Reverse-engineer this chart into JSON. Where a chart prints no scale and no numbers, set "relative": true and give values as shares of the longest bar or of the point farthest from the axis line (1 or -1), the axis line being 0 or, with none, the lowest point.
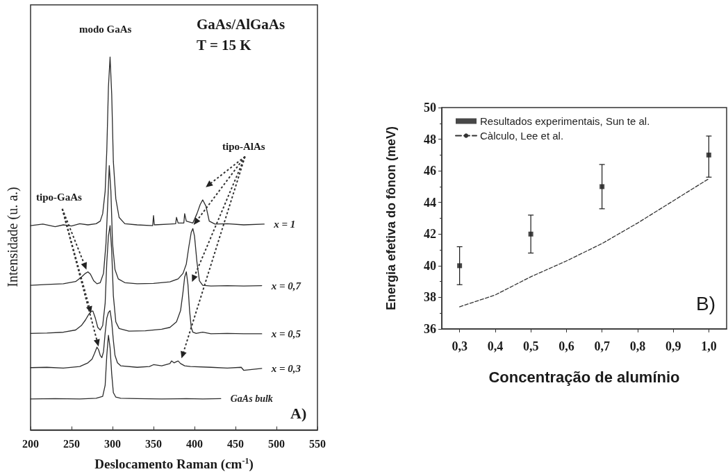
{
  "chart_data": [
    {
      "type": "line",
      "relative": true,
      "xlabel": "Deslocamento Raman (cm$^{-1}$)",
      "ylabel": "Intensidade (u. a.)",
      "xlim": [
        200,
        550
      ],
      "xticks": [
        200,
        250,
        300,
        350,
        400,
        450,
        500,
        550
      ],
      "tick_labels": "x",
      "legend": false,
      "grid": false,
      "marker": "none",
      "line_style": "solid",
      "annotations": [
        "modo GaAs",
        "GaAs/AlGaAs",
        "T = 15 K",
        "tipo-GaAs",
        "tipo-AlAs",
        "A)"
      ],
      "series": [
        {
          "name": "x = 1",
          "color": "#2b2b2b",
          "x": [
            200,
            215,
            230,
            240,
            250,
            260,
            270,
            280,
            285,
            288,
            291,
            293,
            295,
            297,
            299,
            301,
            304,
            308,
            315,
            330,
            349,
            350,
            351,
            370,
            377,
            378,
            380,
            387,
            388,
            390,
            398,
            403,
            407,
            410,
            414,
            418,
            425,
            440,
            460,
            485
          ],
          "values": [
            0.548,
            0.552,
            0.545,
            0.55,
            0.547,
            0.553,
            0.55,
            0.553,
            0.56,
            0.58,
            0.64,
            0.75,
            0.92,
            1.0,
            0.9,
            0.72,
            0.62,
            0.57,
            0.553,
            0.55,
            0.548,
            0.575,
            0.55,
            0.552,
            0.553,
            0.57,
            0.555,
            0.555,
            0.58,
            0.56,
            0.555,
            0.58,
            0.605,
            0.617,
            0.6,
            0.56,
            0.552,
            0.553,
            0.55,
            0.552
          ]
        },
        {
          "name": "x = 0,7",
          "color": "#2b2b2b",
          "x": [
            200,
            220,
            240,
            255,
            262,
            267,
            270,
            273,
            277,
            281,
            285,
            289,
            292,
            294,
            296,
            298,
            300,
            303,
            307,
            315,
            330,
            350,
            370,
            380,
            386,
            390,
            393,
            396,
            398,
            400,
            403,
            406,
            410,
            420,
            440,
            460,
            482
          ],
          "values": [
            0.388,
            0.39,
            0.392,
            0.398,
            0.41,
            0.42,
            0.424,
            0.418,
            0.4,
            0.392,
            0.395,
            0.42,
            0.5,
            0.6,
            0.709,
            0.64,
            0.5,
            0.43,
            0.405,
            0.395,
            0.392,
            0.393,
            0.397,
            0.405,
            0.42,
            0.445,
            0.49,
            0.53,
            0.54,
            0.52,
            0.45,
            0.4,
            0.388,
            0.386,
            0.387,
            0.386,
            0.387
          ]
        },
        {
          "name": "x = 0,5",
          "color": "#2b2b2b",
          "x": [
            200,
            220,
            240,
            255,
            262,
            267,
            271,
            274,
            276,
            279,
            282,
            285,
            288,
            291,
            293,
            295,
            297,
            299,
            301,
            304,
            308,
            320,
            340,
            360,
            370,
            378,
            383,
            386,
            388,
            390,
            392,
            394,
            396,
            398,
            402,
            410,
            420,
            440,
            460,
            482
          ],
          "values": [
            0.259,
            0.26,
            0.262,
            0.268,
            0.28,
            0.295,
            0.31,
            0.318,
            0.319,
            0.3,
            0.275,
            0.268,
            0.28,
            0.34,
            0.45,
            0.52,
            0.548,
            0.48,
            0.36,
            0.29,
            0.272,
            0.265,
            0.266,
            0.27,
            0.275,
            0.29,
            0.32,
            0.37,
            0.41,
            0.424,
            0.39,
            0.32,
            0.275,
            0.262,
            0.259,
            0.262,
            0.258,
            0.259,
            0.258,
            0.258
          ]
        },
        {
          "name": "x = 0,3",
          "color": "#2b2b2b",
          "x": [
            200,
            220,
            240,
            260,
            270,
            275,
            278,
            281,
            283,
            285,
            287,
            289,
            291,
            293,
            295,
            297,
            299,
            301,
            303,
            306,
            310,
            330,
            345,
            350,
            360,
            370,
            372,
            375,
            378,
            380,
            383,
            388,
            395,
            420,
            440,
            457,
            460,
            482
          ],
          "values": [
            0.167,
            0.168,
            0.166,
            0.17,
            0.18,
            0.19,
            0.205,
            0.222,
            0.215,
            0.2,
            0.194,
            0.21,
            0.26,
            0.3,
            0.315,
            0.32,
            0.29,
            0.24,
            0.2,
            0.18,
            0.172,
            0.168,
            0.17,
            0.175,
            0.172,
            0.178,
            0.185,
            0.18,
            0.183,
            0.185,
            0.178,
            0.172,
            0.17,
            0.168,
            0.166,
            0.168,
            0.16,
            0.165
          ]
        },
        {
          "name": "GaAs bulk",
          "color": "#2b2b2b",
          "x": [
            200,
            230,
            260,
            280,
            288,
            291,
            293,
            295,
            297,
            299,
            301,
            304,
            310,
            330,
            360,
            390,
            410,
            432
          ],
          "values": [
            0.083,
            0.084,
            0.083,
            0.085,
            0.09,
            0.12,
            0.2,
            0.254,
            0.22,
            0.15,
            0.1,
            0.088,
            0.085,
            0.084,
            0.083,
            0.084,
            0.083,
            0.084
          ]
        }
      ]
    },
    {
      "type": "scatter",
      "xlabel": "Concentração de alumínio",
      "ylabel": "Energia efetiva do fônon (meV)",
      "xlim": [
        0.25,
        1.05
      ],
      "xticks": [
        {
          "value": 0.3,
          "label": "0,3"
        },
        {
          "value": 0.4,
          "label": "0,4"
        },
        {
          "value": 0.5,
          "label": "0,5"
        },
        {
          "value": 0.6,
          "label": "0,6"
        },
        {
          "value": 0.7,
          "label": "0,7"
        },
        {
          "value": 0.8,
          "label": "0,8"
        },
        {
          "value": 0.9,
          "label": "0,9"
        },
        {
          "value": 1.0,
          "label": "1,0"
        }
      ],
      "ylim": [
        36,
        50
      ],
      "yticks": [
        36,
        38,
        40,
        42,
        44,
        46,
        48,
        50
      ],
      "legend": "top left",
      "grid": false,
      "annotations": [
        "B)"
      ],
      "series": [
        {
          "name": "Resultados experimentais, Sun te al.",
          "type": "scatter",
          "marker": "square",
          "color": "#1a1a1a",
          "x": [
            0.3,
            0.5,
            0.7,
            1.0
          ],
          "values": [
            40,
            42,
            45,
            47
          ],
          "errors": [
            [
              38.8,
              41.2
            ],
            [
              40.8,
              43.2
            ],
            [
              43.6,
              46.4
            ],
            [
              45.6,
              48.2
            ]
          ]
        },
        {
          "name": "Càlculo, Lee et al.",
          "type": "line",
          "marker": "none",
          "line_style": "dashed",
          "color": "#333333",
          "x": [
            0.3,
            0.4,
            0.5,
            0.6,
            0.7,
            0.8,
            0.9,
            1.0
          ],
          "values": [
            37.4,
            38.15,
            39.3,
            40.3,
            41.4,
            42.7,
            44.1,
            45.5
          ]
        }
      ]
    }
  ]
}
